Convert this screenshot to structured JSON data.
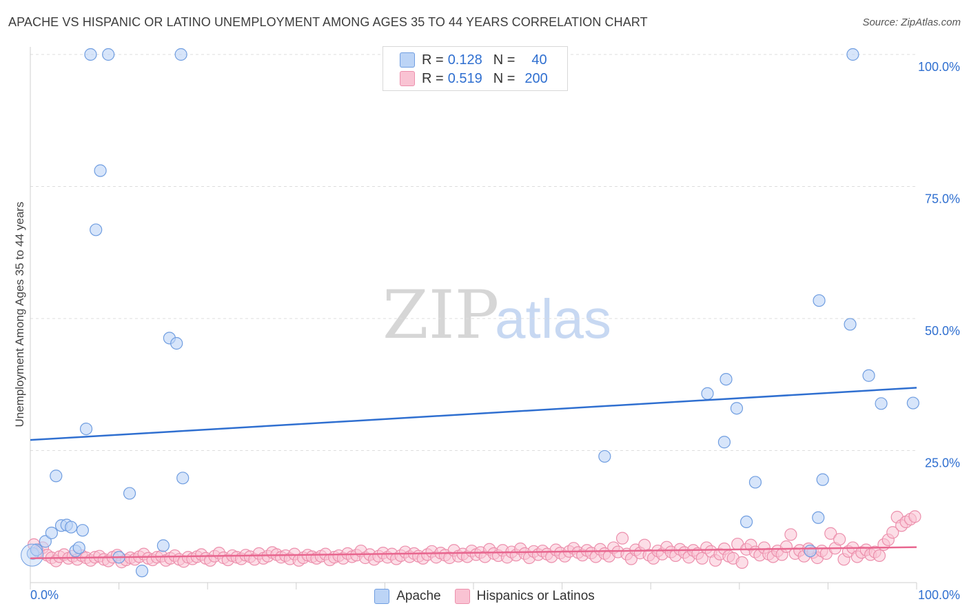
{
  "header": {
    "title": "APACHE VS HISPANIC OR LATINO UNEMPLOYMENT AMONG AGES 35 TO 44 YEARS CORRELATION CHART",
    "source": "Source: ZipAtlas.com"
  },
  "watermark": {
    "zip": "ZIP",
    "atlas": "atlas"
  },
  "legend": {
    "apache": {
      "r_label": "R =",
      "r_value": "0.128",
      "n_label": "N =",
      "n_value": "40"
    },
    "hispanic": {
      "r_label": "R =",
      "r_value": "0.519",
      "n_label": "N =",
      "n_value": "200"
    }
  },
  "colors": {
    "apache_fill": "#bcd4f6",
    "apache_stroke": "#6f9de0",
    "apache_line": "#2f6fd0",
    "hispanic_fill": "#f9c3d3",
    "hispanic_stroke": "#ec8fac",
    "hispanic_line": "#e8668f",
    "axis_text": "#2f6fd0",
    "grid": "#dddddd"
  },
  "chart_data": {
    "type": "scatter",
    "title": "APACHE VS HISPANIC OR LATINO UNEMPLOYMENT AMONG AGES 35 TO 44 YEARS CORRELATION CHART",
    "ylabel": "Unemployment Among Ages 35 to 44 years",
    "xlabel": "",
    "xlim": [
      0,
      100
    ],
    "ylim": [
      0,
      100
    ],
    "x_tick_labels": [
      "0.0%",
      "100.0%"
    ],
    "y_tick_labels": [
      "25.0%",
      "50.0%",
      "75.0%",
      "100.0%"
    ],
    "y_ticks": [
      25,
      50,
      75,
      100
    ],
    "grid": true,
    "legend_position": "top-center",
    "series": [
      {
        "name": "Apache",
        "r": 0.128,
        "n": 40,
        "trend": {
          "x": [
            0,
            100
          ],
          "y": [
            27.0,
            36.9
          ]
        },
        "points": [
          [
            0.3,
            5.5
          ],
          [
            0.7,
            6.2
          ],
          [
            1.7,
            7.8
          ],
          [
            2.4,
            9.4
          ],
          [
            2.9,
            20.2
          ],
          [
            3.5,
            10.8
          ],
          [
            4.1,
            10.9
          ],
          [
            4.6,
            10.5
          ],
          [
            5.1,
            6.0
          ],
          [
            5.5,
            6.6
          ],
          [
            5.9,
            9.9
          ],
          [
            6.3,
            29.1
          ],
          [
            6.8,
            100
          ],
          [
            7.4,
            66.8
          ],
          [
            7.9,
            78.0
          ],
          [
            8.8,
            100
          ],
          [
            10.0,
            4.8
          ],
          [
            11.2,
            16.9
          ],
          [
            12.6,
            2.2
          ],
          [
            15.0,
            7.0
          ],
          [
            15.7,
            46.3
          ],
          [
            16.5,
            45.3
          ],
          [
            17.0,
            100
          ],
          [
            17.2,
            19.8
          ],
          [
            64.8,
            23.9
          ],
          [
            76.4,
            35.8
          ],
          [
            78.3,
            26.6
          ],
          [
            78.5,
            38.5
          ],
          [
            79.7,
            33.0
          ],
          [
            80.8,
            11.5
          ],
          [
            81.8,
            19.0
          ],
          [
            88.0,
            6.0
          ],
          [
            88.9,
            12.3
          ],
          [
            89.0,
            53.4
          ],
          [
            89.4,
            19.5
          ],
          [
            92.5,
            48.9
          ],
          [
            92.8,
            100
          ],
          [
            94.6,
            39.2
          ],
          [
            96.0,
            33.9
          ],
          [
            99.6,
            34.0
          ]
        ]
      },
      {
        "name": "Hispanics or Latinos",
        "r": 0.519,
        "n": 200,
        "trend": {
          "x": [
            0,
            100
          ],
          "y": [
            4.6,
            6.7
          ]
        },
        "points": [
          [
            0.4,
            7.2
          ],
          [
            0.9,
            5.9
          ],
          [
            1.4,
            6.6
          ],
          [
            1.9,
            5.2
          ],
          [
            2.4,
            4.7
          ],
          [
            2.9,
            4.1
          ],
          [
            3.3,
            4.9
          ],
          [
            3.8,
            5.3
          ],
          [
            4.3,
            4.6
          ],
          [
            4.8,
            5.0
          ],
          [
            5.3,
            4.4
          ],
          [
            5.8,
            5.1
          ],
          [
            6.3,
            4.7
          ],
          [
            6.8,
            4.2
          ],
          [
            7.3,
            4.8
          ],
          [
            7.8,
            5.0
          ],
          [
            8.3,
            4.4
          ],
          [
            8.8,
            4.1
          ],
          [
            9.3,
            4.8
          ],
          [
            9.8,
            5.2
          ],
          [
            10.3,
            3.9
          ],
          [
            10.8,
            4.3
          ],
          [
            11.3,
            4.7
          ],
          [
            11.8,
            4.4
          ],
          [
            12.3,
            4.9
          ],
          [
            12.8,
            5.4
          ],
          [
            13.3,
            4.6
          ],
          [
            13.8,
            4.3
          ],
          [
            14.3,
            4.8
          ],
          [
            14.8,
            5.0
          ],
          [
            15.3,
            4.2
          ],
          [
            15.8,
            4.6
          ],
          [
            16.3,
            5.1
          ],
          [
            16.8,
            4.4
          ],
          [
            17.3,
            4.0
          ],
          [
            17.8,
            4.8
          ],
          [
            18.3,
            4.5
          ],
          [
            18.8,
            4.9
          ],
          [
            19.3,
            5.3
          ],
          [
            19.8,
            4.6
          ],
          [
            20.3,
            4.2
          ],
          [
            20.8,
            5.0
          ],
          [
            21.3,
            5.6
          ],
          [
            21.8,
            4.7
          ],
          [
            22.3,
            4.3
          ],
          [
            22.8,
            5.1
          ],
          [
            23.3,
            4.8
          ],
          [
            23.8,
            4.5
          ],
          [
            24.3,
            5.2
          ],
          [
            24.8,
            4.9
          ],
          [
            25.3,
            4.4
          ],
          [
            25.8,
            5.5
          ],
          [
            26.3,
            4.6
          ],
          [
            26.8,
            5.0
          ],
          [
            27.3,
            5.7
          ],
          [
            27.8,
            5.3
          ],
          [
            28.3,
            4.8
          ],
          [
            28.8,
            5.1
          ],
          [
            29.3,
            4.5
          ],
          [
            29.8,
            5.4
          ],
          [
            30.3,
            4.2
          ],
          [
            30.8,
            4.7
          ],
          [
            31.3,
            5.2
          ],
          [
            31.8,
            4.9
          ],
          [
            32.3,
            4.6
          ],
          [
            32.8,
            5.0
          ],
          [
            33.3,
            5.4
          ],
          [
            33.8,
            4.3
          ],
          [
            34.3,
            4.8
          ],
          [
            34.8,
            5.1
          ],
          [
            35.3,
            4.6
          ],
          [
            35.8,
            5.5
          ],
          [
            36.3,
            4.9
          ],
          [
            36.8,
            5.2
          ],
          [
            37.3,
            6.0
          ],
          [
            37.8,
            4.7
          ],
          [
            38.3,
            5.3
          ],
          [
            38.8,
            4.4
          ],
          [
            39.3,
            5.0
          ],
          [
            39.8,
            5.6
          ],
          [
            40.3,
            4.8
          ],
          [
            40.8,
            5.4
          ],
          [
            41.3,
            4.5
          ],
          [
            41.8,
            5.1
          ],
          [
            42.3,
            5.8
          ],
          [
            42.8,
            4.9
          ],
          [
            43.3,
            5.5
          ],
          [
            43.8,
            5.0
          ],
          [
            44.3,
            4.6
          ],
          [
            44.8,
            5.3
          ],
          [
            45.3,
            5.9
          ],
          [
            45.8,
            4.8
          ],
          [
            46.3,
            5.6
          ],
          [
            46.8,
            5.2
          ],
          [
            47.3,
            4.7
          ],
          [
            47.8,
            6.1
          ],
          [
            48.3,
            5.0
          ],
          [
            48.8,
            5.4
          ],
          [
            49.3,
            4.9
          ],
          [
            49.8,
            6.0
          ],
          [
            50.3,
            5.3
          ],
          [
            50.8,
            5.7
          ],
          [
            51.3,
            4.9
          ],
          [
            51.8,
            6.3
          ],
          [
            52.3,
            5.5
          ],
          [
            52.8,
            5.1
          ],
          [
            53.3,
            6.1
          ],
          [
            53.8,
            4.8
          ],
          [
            54.3,
            5.8
          ],
          [
            54.8,
            5.2
          ],
          [
            55.3,
            6.4
          ],
          [
            55.8,
            5.5
          ],
          [
            56.3,
            4.7
          ],
          [
            56.8,
            5.9
          ],
          [
            57.3,
            5.3
          ],
          [
            57.8,
            6.0
          ],
          [
            58.3,
            5.4
          ],
          [
            58.8,
            4.9
          ],
          [
            59.3,
            6.2
          ],
          [
            59.8,
            5.6
          ],
          [
            60.3,
            5.0
          ],
          [
            60.8,
            5.9
          ],
          [
            61.3,
            6.5
          ],
          [
            61.8,
            5.7
          ],
          [
            62.3,
            5.2
          ],
          [
            62.8,
            6.1
          ],
          [
            63.3,
            5.6
          ],
          [
            63.8,
            4.9
          ],
          [
            64.3,
            6.3
          ],
          [
            64.8,
            5.5
          ],
          [
            65.3,
            5.0
          ],
          [
            65.8,
            6.6
          ],
          [
            66.3,
            5.8
          ],
          [
            66.8,
            8.4
          ],
          [
            67.3,
            5.4
          ],
          [
            67.8,
            4.5
          ],
          [
            68.3,
            6.2
          ],
          [
            68.8,
            5.6
          ],
          [
            69.3,
            7.1
          ],
          [
            69.8,
            5.2
          ],
          [
            70.3,
            4.6
          ],
          [
            70.8,
            6.0
          ],
          [
            71.3,
            5.4
          ],
          [
            71.8,
            6.7
          ],
          [
            72.3,
            5.8
          ],
          [
            72.8,
            5.1
          ],
          [
            73.3,
            6.3
          ],
          [
            73.8,
            5.7
          ],
          [
            74.3,
            4.8
          ],
          [
            74.8,
            6.1
          ],
          [
            75.3,
            5.5
          ],
          [
            75.8,
            4.6
          ],
          [
            76.3,
            6.6
          ],
          [
            76.8,
            5.9
          ],
          [
            77.3,
            4.2
          ],
          [
            77.8,
            5.4
          ],
          [
            78.3,
            6.4
          ],
          [
            78.8,
            5.0
          ],
          [
            79.3,
            4.6
          ],
          [
            79.8,
            7.3
          ],
          [
            80.3,
            3.8
          ],
          [
            80.8,
            6.3
          ],
          [
            81.3,
            7.1
          ],
          [
            81.8,
            5.8
          ],
          [
            82.3,
            5.2
          ],
          [
            82.8,
            6.6
          ],
          [
            83.3,
            5.4
          ],
          [
            83.8,
            4.9
          ],
          [
            84.3,
            6.0
          ],
          [
            84.8,
            5.3
          ],
          [
            85.3,
            6.8
          ],
          [
            85.8,
            9.1
          ],
          [
            86.3,
            5.5
          ],
          [
            86.8,
            6.1
          ],
          [
            87.3,
            5.0
          ],
          [
            87.8,
            6.4
          ],
          [
            88.3,
            5.7
          ],
          [
            88.8,
            4.7
          ],
          [
            89.3,
            6.0
          ],
          [
            89.8,
            5.5
          ],
          [
            90.3,
            9.3
          ],
          [
            90.8,
            6.5
          ],
          [
            91.3,
            8.2
          ],
          [
            91.8,
            4.4
          ],
          [
            92.3,
            5.9
          ],
          [
            92.8,
            6.6
          ],
          [
            93.3,
            4.9
          ],
          [
            93.8,
            5.7
          ],
          [
            94.3,
            6.2
          ],
          [
            94.8,
            5.3
          ],
          [
            95.3,
            5.8
          ],
          [
            95.8,
            5.1
          ],
          [
            96.3,
            7.2
          ],
          [
            96.8,
            8.1
          ],
          [
            97.3,
            9.5
          ],
          [
            97.8,
            12.4
          ],
          [
            98.3,
            10.8
          ],
          [
            98.8,
            11.5
          ],
          [
            99.3,
            12.0
          ],
          [
            99.8,
            12.5
          ]
        ]
      }
    ]
  },
  "bottom_legend": {
    "apache_label": "Apache",
    "hispanic_label": "Hispanics or Latinos"
  }
}
